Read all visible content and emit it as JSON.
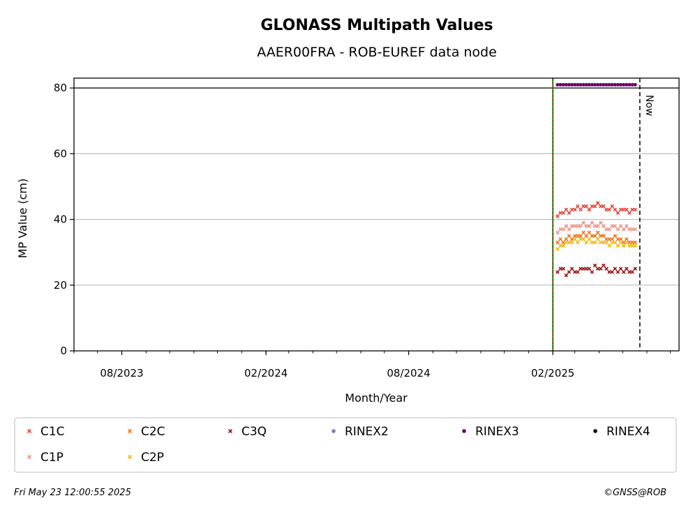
{
  "chart_data": {
    "type": "scatter",
    "title": "GLONASS Multipath Values",
    "subtitle": "AAER00FRA - ROB-EUREF data node",
    "xlabel": "Month/Year",
    "ylabel": "MP Value (cm)",
    "x_range": [
      "2023-06-01",
      "2025-07-12"
    ],
    "ylim": [
      0,
      83
    ],
    "yticks": [
      0,
      20,
      40,
      60,
      80
    ],
    "xticks": [
      {
        "date": "2023-08-01",
        "label": "08/2023"
      },
      {
        "date": "2024-02-01",
        "label": "02/2024"
      },
      {
        "date": "2024-08-01",
        "label": "08/2024"
      },
      {
        "date": "2025-02-01",
        "label": "02/2025"
      }
    ],
    "grid": "horizontal",
    "reference_line_y": 80,
    "now": {
      "date": "2025-05-23",
      "label": "Now"
    },
    "vertical_marker_date": "2025-02-01",
    "legend_position": "below plot",
    "series": [
      {
        "name": "C1C",
        "color": "#e8352a",
        "marker": "x",
        "date_range": [
          "2025-02-07",
          "2025-05-17"
        ],
        "values": [
          41,
          42,
          42,
          43,
          42,
          43,
          43,
          44,
          43,
          44,
          44,
          43,
          44,
          44,
          45,
          44,
          44,
          43,
          43,
          44,
          43,
          42,
          43,
          43,
          43,
          42,
          43,
          43
        ]
      },
      {
        "name": "C2C",
        "color": "#f06a0a",
        "marker": "x",
        "date_range": [
          "2025-02-07",
          "2025-05-17"
        ],
        "values": [
          33,
          34,
          33,
          34,
          35,
          34,
          35,
          35,
          35,
          36,
          35,
          36,
          35,
          35,
          36,
          35,
          35,
          34,
          34,
          34,
          35,
          34,
          34,
          33,
          34,
          33,
          33,
          33
        ]
      },
      {
        "name": "C3Q",
        "color": "#990000",
        "marker": "x",
        "date_range": [
          "2025-02-07",
          "2025-05-17"
        ],
        "values": [
          24,
          25,
          25,
          23,
          24,
          25,
          24,
          24,
          25,
          25,
          25,
          25,
          24,
          26,
          25,
          25,
          26,
          25,
          24,
          24,
          25,
          24,
          25,
          24,
          25,
          24,
          24,
          25
        ]
      },
      {
        "name": "C1P",
        "color": "#f08a80",
        "marker": "x",
        "date_range": [
          "2025-02-07",
          "2025-05-17"
        ],
        "values": [
          36,
          37,
          37,
          38,
          37,
          38,
          38,
          38,
          38,
          39,
          38,
          38,
          39,
          38,
          38,
          39,
          38,
          37,
          37,
          38,
          38,
          37,
          38,
          37,
          38,
          37,
          37,
          37
        ]
      },
      {
        "name": "C2P",
        "color": "#f5b400",
        "marker": "x",
        "date_range": [
          "2025-02-07",
          "2025-05-17"
        ],
        "values": [
          31,
          32,
          32,
          33,
          33,
          33,
          34,
          33,
          34,
          34,
          33,
          34,
          33,
          33,
          34,
          33,
          33,
          33,
          32,
          33,
          33,
          32,
          33,
          32,
          33,
          32,
          32,
          32
        ]
      },
      {
        "name": "RINEX2",
        "color": "#8a7cc0",
        "marker": "o",
        "values": []
      },
      {
        "name": "RINEX3",
        "color": "#6b0a6b",
        "marker": "o",
        "date_range": [
          "2025-02-07",
          "2025-05-17"
        ],
        "values": [
          81,
          81,
          81,
          81,
          81,
          81,
          81,
          81,
          81,
          81,
          81,
          81,
          81,
          81,
          81,
          81,
          81,
          81,
          81,
          81,
          81,
          81,
          81,
          81,
          81,
          81,
          81,
          81
        ]
      },
      {
        "name": "RINEX4",
        "color": "#1a0a1a",
        "marker": "o",
        "values": []
      }
    ]
  },
  "footer": {
    "timestamp": "Fri May 23 12:00:55 2025",
    "copyright": "©GNSS@ROB"
  }
}
